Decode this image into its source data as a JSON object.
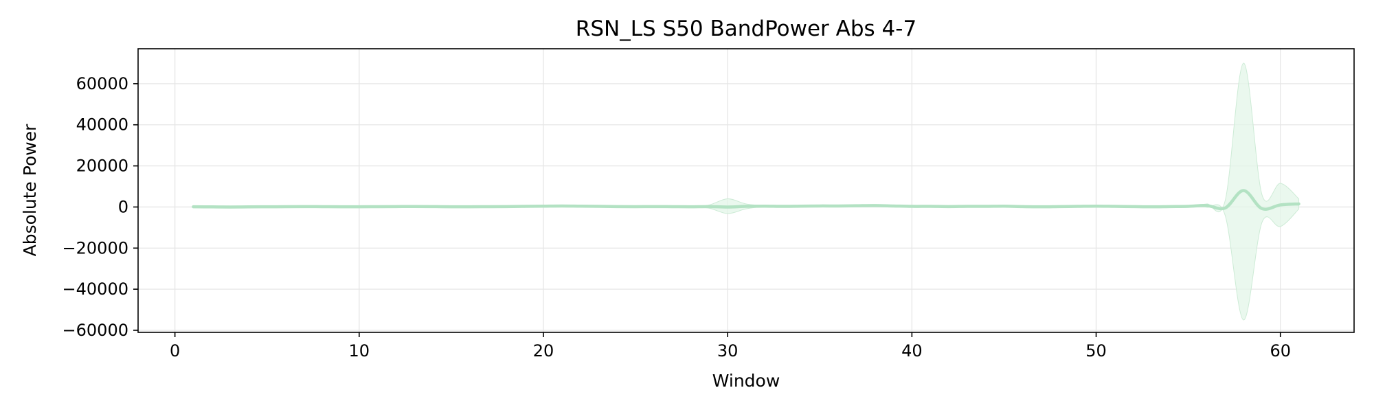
{
  "chart_data": {
    "type": "line",
    "title": "RSN_LS S50 BandPower Abs 4-7",
    "xlabel": "Window",
    "ylabel": "Absolute Power",
    "xlim": [
      -2,
      64
    ],
    "ylim": [
      -61000,
      77000
    ],
    "x_ticks": [
      0,
      10,
      20,
      30,
      40,
      50,
      60
    ],
    "x_tick_labels": [
      "0",
      "10",
      "20",
      "30",
      "40",
      "50",
      "60"
    ],
    "y_ticks": [
      -60000,
      -40000,
      -20000,
      0,
      20000,
      40000,
      60000
    ],
    "y_tick_labels": [
      "−60000",
      "−40000",
      "−20000",
      "0",
      "20000",
      "40000",
      "60000"
    ],
    "grid": true,
    "legend": "none",
    "colors": {
      "line": "#b3e2c3",
      "band": "#e3f5e8",
      "band_edge": "#cdebd6",
      "grid": "#e6e6e6",
      "axes": "#000000"
    },
    "series": [
      {
        "x": [
          1,
          2,
          3,
          4,
          5,
          6,
          7,
          8,
          9,
          10,
          11,
          12,
          13,
          14,
          15,
          16,
          17,
          18,
          19,
          20,
          21,
          22,
          23,
          24,
          25,
          26,
          27,
          28,
          29,
          30,
          31,
          32,
          33,
          34,
          35,
          36,
          37,
          38,
          39,
          40,
          41,
          42,
          43,
          44,
          45,
          46,
          47,
          48,
          49,
          50,
          51,
          52,
          53,
          54,
          55,
          56,
          57,
          58,
          59,
          60,
          61
        ],
        "mean": [
          100,
          50,
          0,
          50,
          100,
          150,
          200,
          150,
          100,
          100,
          150,
          200,
          250,
          200,
          100,
          100,
          150,
          200,
          300,
          400,
          500,
          400,
          300,
          200,
          150,
          200,
          150,
          100,
          200,
          0,
          300,
          400,
          300,
          400,
          500,
          500,
          600,
          700,
          500,
          300,
          300,
          200,
          300,
          300,
          400,
          200,
          100,
          200,
          300,
          400,
          300,
          200,
          100,
          200,
          300,
          700,
          -500,
          8000,
          -800,
          1000,
          1500
        ],
        "upper": [
          200,
          150,
          100,
          150,
          200,
          250,
          300,
          250,
          200,
          200,
          250,
          300,
          350,
          300,
          200,
          200,
          250,
          300,
          400,
          500,
          600,
          500,
          400,
          300,
          250,
          300,
          250,
          200,
          1000,
          4000,
          1500,
          700,
          500,
          600,
          700,
          700,
          800,
          900,
          700,
          500,
          500,
          400,
          500,
          500,
          600,
          400,
          300,
          400,
          500,
          600,
          500,
          400,
          300,
          400,
          600,
          1500,
          3000,
          70000,
          6000,
          11500,
          4000
        ],
        "lower": [
          0,
          -50,
          -100,
          -50,
          0,
          50,
          100,
          50,
          0,
          0,
          50,
          100,
          150,
          100,
          0,
          0,
          50,
          100,
          200,
          300,
          400,
          300,
          200,
          100,
          50,
          100,
          50,
          0,
          -600,
          -3200,
          -900,
          100,
          100,
          200,
          300,
          300,
          400,
          500,
          300,
          100,
          100,
          0,
          100,
          100,
          200,
          0,
          -100,
          0,
          100,
          200,
          100,
          0,
          -100,
          0,
          0,
          -100,
          -4000,
          -55000,
          -7500,
          -9500,
          -1000
        ]
      }
    ]
  }
}
